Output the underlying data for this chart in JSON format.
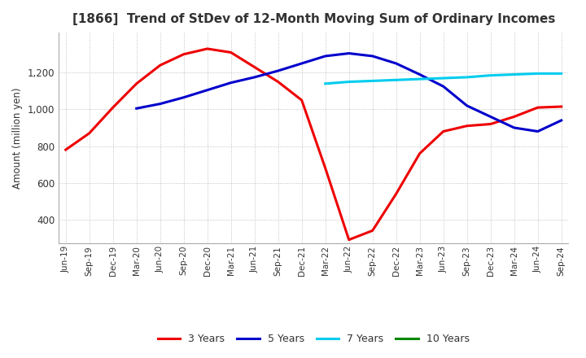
{
  "title": "[1866]  Trend of StDev of 12-Month Moving Sum of Ordinary Incomes",
  "ylabel": "Amount (million yen)",
  "ylim": [
    270,
    1420
  ],
  "yticks": [
    400,
    600,
    800,
    1000,
    1200
  ],
  "background_color": "#ffffff",
  "title_color": "#333333",
  "grid_color": "#aaaaaa",
  "x_labels": [
    "Jun-19",
    "Sep-19",
    "Dec-19",
    "Mar-20",
    "Jun-20",
    "Sep-20",
    "Dec-20",
    "Mar-21",
    "Jun-21",
    "Sep-21",
    "Dec-21",
    "Mar-22",
    "Jun-22",
    "Sep-22",
    "Dec-22",
    "Mar-23",
    "Jun-23",
    "Sep-23",
    "Dec-23",
    "Mar-24",
    "Jun-24",
    "Sep-24"
  ],
  "series": {
    "3 Years": {
      "color": "#ee0000",
      "linewidth": 2.2,
      "values": [
        780,
        870,
        1010,
        1140,
        1240,
        1300,
        1330,
        1310,
        1230,
        1150,
        1050,
        680,
        290,
        340,
        540,
        760,
        880,
        910,
        920,
        960,
        1010,
        1015
      ]
    },
    "5 Years": {
      "color": "#0000cc",
      "linewidth": 2.2,
      "values": [
        null,
        null,
        null,
        1005,
        1030,
        1065,
        1105,
        1145,
        1175,
        1210,
        1250,
        1290,
        1305,
        1290,
        1250,
        1190,
        1125,
        1020,
        960,
        900,
        880,
        940
      ]
    },
    "7 Years": {
      "color": "#00ccee",
      "linewidth": 2.2,
      "values": [
        null,
        null,
        null,
        null,
        null,
        null,
        null,
        null,
        null,
        null,
        null,
        1140,
        1150,
        1155,
        1160,
        1165,
        1170,
        1175,
        1185,
        1190,
        1195,
        1195
      ]
    },
    "10 Years": {
      "color": "#008800",
      "linewidth": 2.2,
      "values": [
        null,
        null,
        null,
        null,
        null,
        null,
        null,
        null,
        null,
        null,
        null,
        null,
        null,
        null,
        null,
        null,
        null,
        null,
        null,
        null,
        null,
        null
      ]
    }
  }
}
